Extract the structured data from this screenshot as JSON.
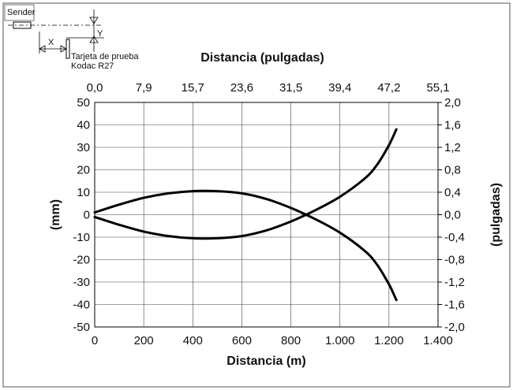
{
  "diagram": {
    "sender_label": "Sender",
    "x_label": "X",
    "y_label": "Y",
    "card_line1": "Tarjeta de prueba",
    "card_line2": "Kodac R27"
  },
  "chart_data": {
    "type": "line",
    "xlabel": "Distancia (m)",
    "x2label": "Distancia (pulgadas)",
    "ylabel": "(mm)",
    "y2label": "(pulgadas)",
    "xlim": [
      0,
      1400
    ],
    "ylim": [
      -50,
      50
    ],
    "x_ticks": [
      "0",
      "200",
      "400",
      "600",
      "800",
      "1.000",
      "1.200",
      "1.400"
    ],
    "x2_ticks": [
      "0,0",
      "7,9",
      "15,7",
      "23,6",
      "31,5",
      "39,4",
      "47,2",
      "55,1"
    ],
    "y_ticks": [
      "50",
      "40",
      "30",
      "20",
      "10",
      "0",
      "-10",
      "-20",
      "-30",
      "-40",
      "-50"
    ],
    "y2_ticks": [
      "2,0",
      "1,6",
      "1,2",
      "0,8",
      "0,4",
      "0,0",
      "-0,4",
      "-0,8",
      "-1,2",
      "-1,6",
      "-2,0"
    ],
    "grid": true,
    "series": [
      {
        "x": [
          0,
          100,
          200,
          300,
          400,
          500,
          600,
          700,
          800,
          900,
          1000,
          1100,
          1150,
          1200,
          1230
        ],
        "y": [
          1,
          4.5,
          7.5,
          9.5,
          10.5,
          10.5,
          9.5,
          7,
          3,
          -2,
          -8,
          -16,
          -22,
          -31,
          -38
        ]
      },
      {
        "x": [
          0,
          100,
          200,
          300,
          400,
          500,
          600,
          700,
          800,
          900,
          1000,
          1100,
          1150,
          1200,
          1230
        ],
        "y": [
          -1,
          -4.5,
          -7.5,
          -9.5,
          -10.5,
          -10.5,
          -9.5,
          -7,
          -3,
          2,
          8,
          16,
          22,
          31,
          38
        ]
      }
    ]
  }
}
